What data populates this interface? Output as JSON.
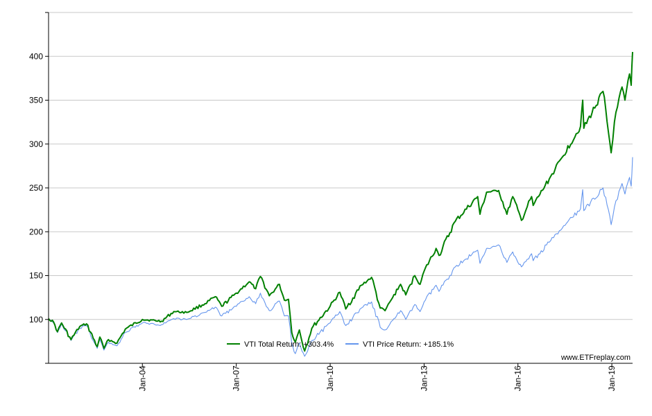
{
  "chart_data": {
    "type": "line",
    "ylim": [
      50,
      450
    ],
    "xlim": [
      "2001-01-01",
      "2019-08-31"
    ],
    "y_ticks": [
      100,
      150,
      200,
      250,
      300,
      350,
      400
    ],
    "y_tick_labels": [
      "100",
      "150",
      "200",
      "250",
      "300",
      "350",
      "400"
    ],
    "x_ticks": [
      "2004-01-01",
      "2007-01-01",
      "2010-01-01",
      "2013-01-01",
      "2016-01-01",
      "2019-01-01"
    ],
    "x_tick_labels": [
      "Jan-04",
      "Jan-07",
      "Jan-10",
      "Jan-13",
      "Jan-16",
      "Jan-19"
    ],
    "grid": true,
    "legend_placement": "bottom-center",
    "watermark": "www.ETFreplay.com",
    "series": [
      {
        "name": "VTI Total Return: +303.4%",
        "color": "#008000",
        "x": [
          "2001-01-01",
          "2001-03-01",
          "2001-04-15",
          "2001-06-01",
          "2001-09-20",
          "2001-12-31",
          "2002-03-20",
          "2002-07-23",
          "2002-08-22",
          "2002-10-09",
          "2002-12-01",
          "2003-03-11",
          "2003-06-15",
          "2004-01-01",
          "2004-08-12",
          "2005-01-01",
          "2005-06-01",
          "2006-01-01",
          "2006-05-01",
          "2006-07-15",
          "2007-01-01",
          "2007-06-01",
          "2007-08-15",
          "2007-10-09",
          "2008-01-22",
          "2008-05-19",
          "2008-07-15",
          "2008-09-01",
          "2008-10-10",
          "2008-11-20",
          "2009-01-06",
          "2009-03-09",
          "2009-06-01",
          "2009-12-31",
          "2010-04-23",
          "2010-07-02",
          "2010-12-31",
          "2011-04-29",
          "2011-08-08",
          "2011-10-03",
          "2011-12-31",
          "2012-04-01",
          "2012-06-01",
          "2012-09-14",
          "2012-11-15",
          "2013-01-01",
          "2013-05-21",
          "2013-06-24",
          "2013-12-31",
          "2014-09-18",
          "2014-10-15",
          "2014-12-31",
          "2015-05-21",
          "2015-08-25",
          "2015-11-01",
          "2016-01-01",
          "2016-02-11",
          "2016-06-08",
          "2016-06-27",
          "2016-12-31",
          "2017-06-01",
          "2017-12-31",
          "2018-01-26",
          "2018-02-08",
          "2018-09-20",
          "2018-12-24",
          "2019-01-31",
          "2019-04-30",
          "2019-06-03",
          "2019-07-26",
          "2019-08-15",
          "2019-08-31"
        ],
        "values": [
          101,
          97,
          86,
          96,
          77,
          92,
          95,
          69,
          80,
          67,
          77,
          73,
          89,
          100,
          98,
          109,
          108,
          118,
          126,
          115,
          130,
          143,
          135,
          149,
          127,
          140,
          122,
          123,
          85,
          74,
          88,
          64,
          90,
          115,
          131,
          112,
          139,
          148,
          113,
          110,
          125,
          140,
          128,
          150,
          140,
          155,
          181,
          173,
          212,
          240,
          220,
          245,
          247,
          220,
          240,
          225,
          213,
          240,
          230,
          260,
          285,
          320,
          350,
          318,
          360,
          290,
          325,
          365,
          350,
          380,
          367,
          405
        ]
      },
      {
        "name": "VTI Price Return: +185.1%",
        "color": "#6495ed",
        "x": [
          "2001-01-01",
          "2001-03-01",
          "2001-04-15",
          "2001-06-01",
          "2001-09-20",
          "2001-12-31",
          "2002-03-20",
          "2002-07-23",
          "2002-08-22",
          "2002-10-09",
          "2002-12-01",
          "2003-03-11",
          "2003-06-15",
          "2004-01-01",
          "2004-08-12",
          "2005-01-01",
          "2005-06-01",
          "2006-01-01",
          "2006-05-01",
          "2006-07-15",
          "2007-01-01",
          "2007-06-01",
          "2007-08-15",
          "2007-10-09",
          "2008-01-22",
          "2008-05-19",
          "2008-07-15",
          "2008-09-01",
          "2008-10-10",
          "2008-11-20",
          "2009-01-06",
          "2009-03-09",
          "2009-06-01",
          "2009-12-31",
          "2010-04-23",
          "2010-07-02",
          "2010-12-31",
          "2011-04-29",
          "2011-08-08",
          "2011-10-03",
          "2011-12-31",
          "2012-04-01",
          "2012-06-01",
          "2012-09-14",
          "2012-11-15",
          "2013-01-01",
          "2013-05-21",
          "2013-06-24",
          "2013-12-31",
          "2014-09-18",
          "2014-10-15",
          "2014-12-31",
          "2015-05-21",
          "2015-08-25",
          "2015-11-01",
          "2016-01-01",
          "2016-02-11",
          "2016-06-08",
          "2016-06-27",
          "2016-12-31",
          "2017-06-01",
          "2017-12-31",
          "2018-01-26",
          "2018-02-08",
          "2018-09-20",
          "2018-12-24",
          "2019-01-31",
          "2019-04-30",
          "2019-06-03",
          "2019-07-26",
          "2019-08-15",
          "2019-08-31"
        ],
        "values": [
          101,
          96,
          85,
          95,
          76,
          90,
          93,
          67,
          77,
          65,
          74,
          70,
          85,
          96,
          94,
          101,
          100,
          108,
          114,
          104,
          115,
          126,
          118,
          130,
          110,
          121,
          104,
          104,
          72,
          61,
          73,
          58,
          76,
          96,
          109,
          93,
          113,
          120,
          91,
          88,
          99,
          110,
          100,
          117,
          109,
          120,
          139,
          132,
          160,
          179,
          164,
          181,
          185,
          165,
          177,
          165,
          160,
          175,
          167,
          188,
          204,
          226,
          248,
          224,
          250,
          208,
          228,
          255,
          243,
          262,
          252,
          285
        ]
      }
    ]
  }
}
